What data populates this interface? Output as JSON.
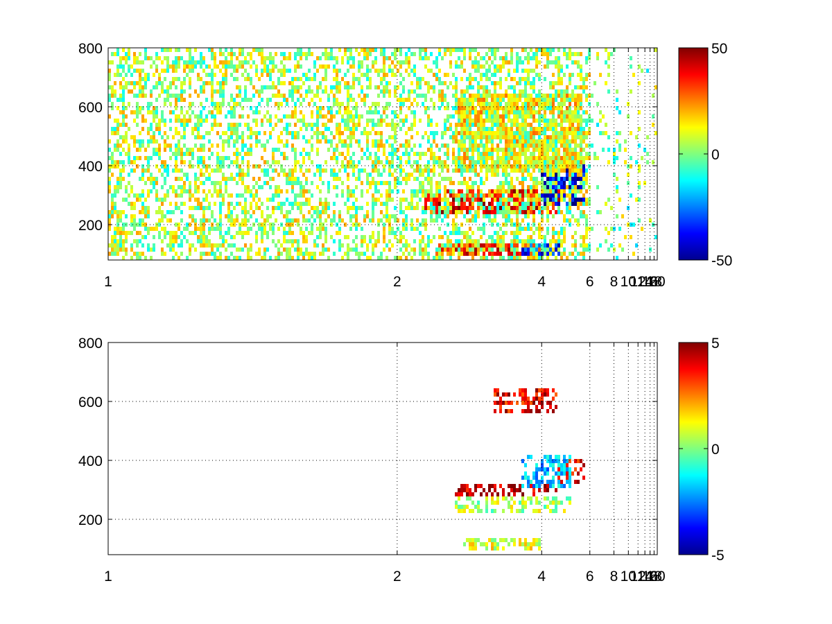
{
  "chart_data": [
    {
      "type": "heatmap",
      "title": "",
      "xlabel": "",
      "ylabel": "",
      "xlim": [
        1,
        20
      ],
      "ylim": [
        80,
        800
      ],
      "x_scale": "reciprocal",
      "x_ticks": [
        "1",
        "2",
        "4",
        "6",
        "8",
        "10",
        "12",
        "14",
        "16",
        "18",
        "20"
      ],
      "y_ticks": [
        "200",
        "400",
        "600",
        "800"
      ],
      "grid": true,
      "colormap": "jet",
      "colorbar": {
        "range": [
          -50,
          50
        ],
        "ticks": [
          "50",
          "0",
          "-50"
        ]
      },
      "features": [
        {
          "x": [
            2.2,
            4.6
          ],
          "y": [
            230,
            320
          ],
          "value": 40
        },
        {
          "x": [
            4.0,
            5.8
          ],
          "y": [
            270,
            400
          ],
          "value": -40
        },
        {
          "x": [
            2.3,
            4.0
          ],
          "y": [
            95,
            135
          ],
          "value": 35
        },
        {
          "x": [
            3.5,
            4.6
          ],
          "y": [
            95,
            130
          ],
          "value": -35
        },
        {
          "x": [
            2.5,
            5.5
          ],
          "y": [
            380,
            650
          ],
          "value": 15
        },
        {
          "x": [
            1,
            6
          ],
          "y": [
            80,
            800
          ],
          "value": 5,
          "note": "scattered noise"
        },
        {
          "x": [
            6,
            20
          ],
          "y": [
            80,
            800
          ],
          "value": 0,
          "note": "sparse speckle"
        }
      ]
    },
    {
      "type": "heatmap",
      "title": "",
      "xlabel": "",
      "ylabel": "",
      "xlim": [
        1,
        20
      ],
      "ylim": [
        80,
        800
      ],
      "x_scale": "reciprocal",
      "x_ticks": [
        "1",
        "2",
        "4",
        "6",
        "8",
        "10",
        "12",
        "14",
        "16",
        "18",
        "20"
      ],
      "y_ticks": [
        "200",
        "400",
        "600",
        "800"
      ],
      "grid": true,
      "colormap": "jet",
      "colorbar": {
        "range": [
          -5,
          5
        ],
        "ticks": [
          "5",
          "0",
          "-5"
        ]
      },
      "features": [
        {
          "x": [
            2.5,
            4.5
          ],
          "y": [
            280,
            320
          ],
          "value": 4.5
        },
        {
          "x": [
            4.5,
            5.8
          ],
          "y": [
            320,
            400
          ],
          "value": 4
        },
        {
          "x": [
            2.5,
            5.0
          ],
          "y": [
            220,
            280
          ],
          "value": 0.5
        },
        {
          "x": [
            2.6,
            4.0
          ],
          "y": [
            100,
            140
          ],
          "value": 1
        },
        {
          "x": [
            3.5,
            5.0
          ],
          "y": [
            300,
            420
          ],
          "value": -2
        },
        {
          "x": [
            3.0,
            4.5
          ],
          "y": [
            560,
            640
          ],
          "value": 4
        }
      ]
    }
  ]
}
